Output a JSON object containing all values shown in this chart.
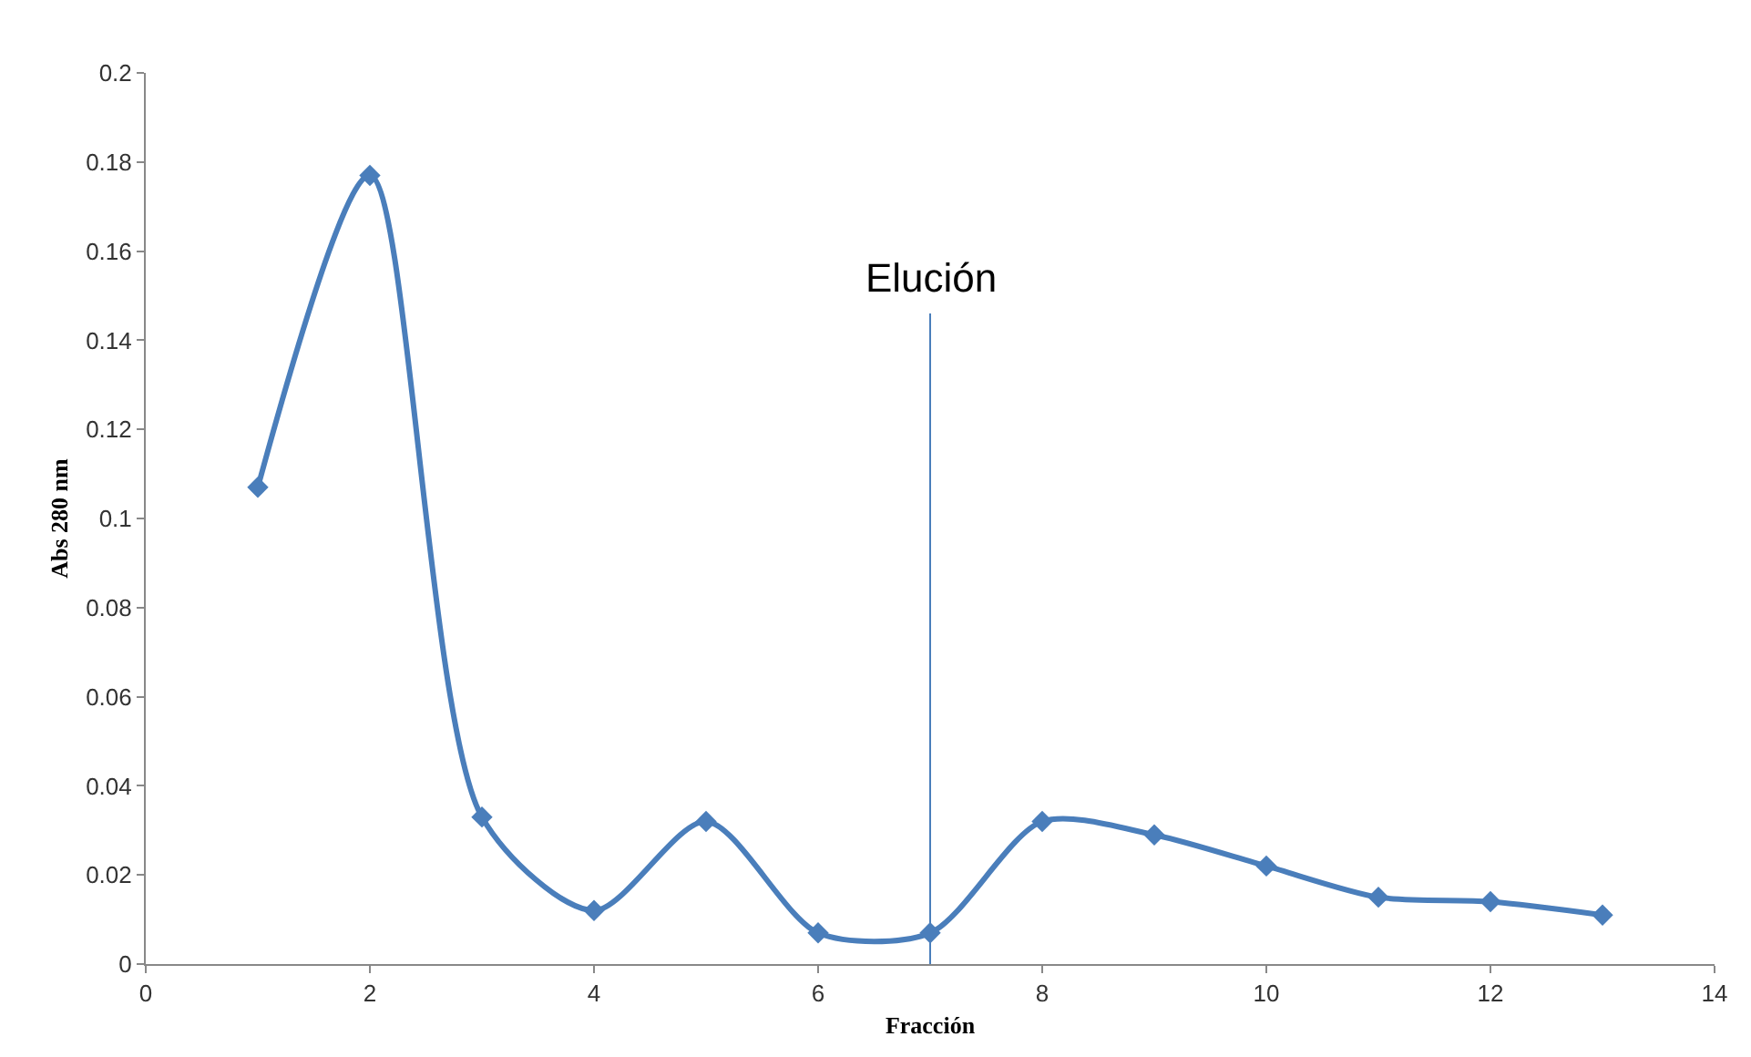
{
  "chart_data": {
    "type": "line",
    "xlabel": "Fracción",
    "ylabel": "Abs 280 nm",
    "x": [
      1,
      2,
      3,
      4,
      5,
      6,
      7,
      8,
      9,
      10,
      11,
      12,
      13
    ],
    "series": [
      {
        "color": "#4a7ebb",
        "values": [
          0.107,
          0.177,
          0.033,
          0.012,
          0.032,
          0.007,
          0.007,
          0.032,
          0.029,
          0.022,
          0.015,
          0.014,
          0.011
        ]
      }
    ],
    "xlim": [
      0,
      14
    ],
    "xticks": [
      0,
      2,
      4,
      6,
      8,
      10,
      12,
      14
    ],
    "ylim": [
      0,
      0.2
    ],
    "yticks": [
      0,
      0.02,
      0.04,
      0.06,
      0.08,
      0.1,
      0.12,
      0.14,
      0.16,
      0.18,
      0.2
    ],
    "ref_lines": [
      {
        "axis": "x",
        "value": 7,
        "label": "Elución",
        "color": "#4a7ebb"
      }
    ],
    "grid": false,
    "legend": false,
    "marker": "diamond",
    "line_style": "solid"
  }
}
